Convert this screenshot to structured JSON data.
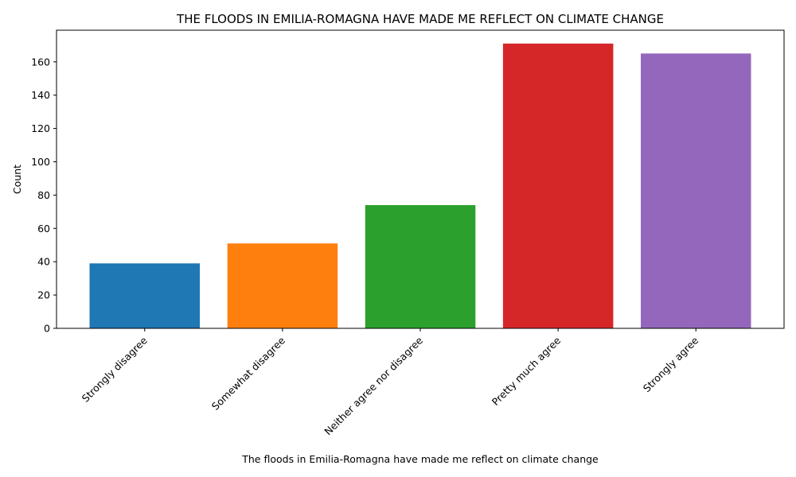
{
  "chart_data": {
    "type": "bar",
    "title": "THE FLOODS IN EMILIA-ROMAGNA HAVE MADE ME REFLECT ON CLIMATE CHANGE",
    "xlabel": "The floods in Emilia-Romagna have made me reflect on climate change",
    "ylabel": "Count",
    "categories": [
      "Strongly disagree",
      "Somewhat disagree",
      "Neither agree nor disagree",
      "Pretty much agree",
      "Strongly agree"
    ],
    "values": [
      39,
      51,
      74,
      171,
      165
    ],
    "colors": [
      "#1f77b4",
      "#ff7f0e",
      "#2ca02c",
      "#d62728",
      "#9467bd"
    ],
    "ylim": [
      0,
      179
    ],
    "yticks": [
      0,
      20,
      40,
      60,
      80,
      100,
      120,
      140,
      160
    ],
    "grid": false,
    "legend": "none"
  }
}
